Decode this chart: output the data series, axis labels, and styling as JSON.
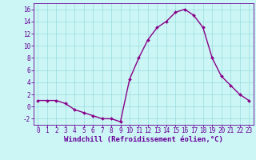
{
  "x": [
    0,
    1,
    2,
    3,
    4,
    5,
    6,
    7,
    8,
    9,
    10,
    11,
    12,
    13,
    14,
    15,
    16,
    17,
    18,
    19,
    20,
    21,
    22,
    23
  ],
  "y": [
    1.0,
    1.0,
    1.0,
    0.5,
    -0.5,
    -1.0,
    -1.5,
    -2.0,
    -2.0,
    -2.5,
    4.5,
    8.0,
    11.0,
    13.0,
    14.0,
    15.5,
    16.0,
    15.0,
    13.0,
    8.0,
    5.0,
    3.5,
    2.0,
    1.0
  ],
  "xlabel": "Windchill (Refroidissement éolien,°C)",
  "xlim": [
    -0.5,
    23.5
  ],
  "ylim": [
    -3,
    17
  ],
  "yticks": [
    -2,
    0,
    2,
    4,
    6,
    8,
    10,
    12,
    14,
    16
  ],
  "xticks": [
    0,
    1,
    2,
    3,
    4,
    5,
    6,
    7,
    8,
    9,
    10,
    11,
    12,
    13,
    14,
    15,
    16,
    17,
    18,
    19,
    20,
    21,
    22,
    23
  ],
  "line_color": "#880088",
  "marker_color": "#880088",
  "bg_color": "#ccf5f5",
  "grid_color": "#99dddd",
  "label_color": "#660099",
  "xlabel_fontsize": 6.5,
  "tick_fontsize": 5.5,
  "marker_size": 2.0,
  "linewidth": 1.0
}
